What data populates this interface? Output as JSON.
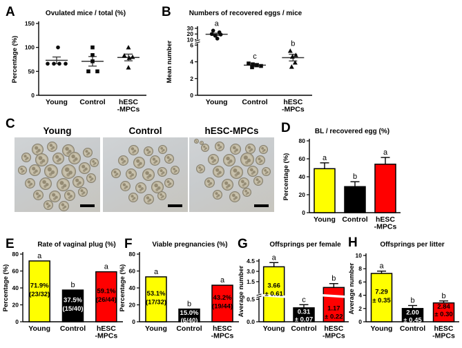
{
  "panel_c": {
    "letter": "C",
    "images": [
      {
        "label": "Young",
        "cells": [
          [
            20,
            8,
            15
          ],
          [
            38,
            6,
            13
          ],
          [
            56,
            9,
            16
          ],
          [
            8,
            20,
            12
          ],
          [
            24,
            21,
            17
          ],
          [
            44,
            20,
            15
          ],
          [
            63,
            19,
            16
          ],
          [
            80,
            14,
            12
          ],
          [
            4,
            38,
            11
          ],
          [
            17,
            36,
            15
          ],
          [
            35,
            36,
            18
          ],
          [
            55,
            36,
            19
          ],
          [
            75,
            33,
            15
          ],
          [
            88,
            28,
            11
          ],
          [
            12,
            55,
            13
          ],
          [
            29,
            54,
            16
          ],
          [
            49,
            55,
            17
          ],
          [
            68,
            52,
            15
          ],
          [
            84,
            48,
            12
          ],
          [
            22,
            70,
            13
          ],
          [
            40,
            71,
            15
          ],
          [
            58,
            70,
            14
          ],
          [
            74,
            67,
            12
          ],
          [
            34,
            84,
            12
          ],
          [
            52,
            85,
            13
          ]
        ]
      },
      {
        "label": "Control",
        "cells": [
          [
            30,
            10,
            13
          ],
          [
            48,
            12,
            12
          ],
          [
            65,
            10,
            11
          ],
          [
            18,
            24,
            13
          ],
          [
            36,
            26,
            15
          ],
          [
            55,
            24,
            13
          ],
          [
            72,
            22,
            12
          ],
          [
            10,
            42,
            12
          ],
          [
            27,
            42,
            14
          ],
          [
            46,
            42,
            16
          ],
          [
            64,
            40,
            12
          ],
          [
            80,
            38,
            11
          ],
          [
            20,
            58,
            13
          ],
          [
            38,
            60,
            14
          ],
          [
            57,
            58,
            16
          ],
          [
            72,
            55,
            12
          ],
          [
            30,
            74,
            12
          ],
          [
            48,
            76,
            13
          ],
          [
            64,
            72,
            11
          ]
        ]
      },
      {
        "label": "hESC-MPCs",
        "cells": [
          [
            6,
            2,
            5
          ],
          [
            12,
            5,
            4
          ],
          [
            14,
            8,
            10
          ],
          [
            30,
            6,
            12
          ],
          [
            48,
            8,
            14
          ],
          [
            66,
            8,
            13
          ],
          [
            82,
            10,
            11
          ],
          [
            22,
            22,
            14
          ],
          [
            40,
            22,
            16
          ],
          [
            60,
            20,
            18
          ],
          [
            78,
            24,
            12
          ],
          [
            8,
            36,
            11
          ],
          [
            28,
            38,
            15
          ],
          [
            48,
            38,
            17
          ],
          [
            68,
            38,
            14
          ],
          [
            85,
            40,
            11
          ],
          [
            18,
            54,
            13
          ],
          [
            38,
            56,
            15
          ],
          [
            58,
            54,
            14
          ],
          [
            76,
            52,
            12
          ],
          [
            28,
            70,
            12
          ],
          [
            47,
            72,
            14
          ],
          [
            63,
            68,
            11
          ]
        ]
      }
    ]
  },
  "chart_data": [
    {
      "panel": "A",
      "type": "scatter",
      "title": "Ovulated mice / total (%)",
      "ylabel": "Percentage (%)",
      "yticks": [
        0,
        50,
        100,
        150
      ],
      "ylim": [
        0,
        150
      ],
      "categories": [
        "Young",
        "Control",
        "hESC\n-MPCs"
      ],
      "groups": [
        {
          "name": "Young",
          "marker": "circle",
          "values": [
            100,
            66,
            66,
            66,
            66
          ],
          "dx": [
            2,
            -13,
            -4,
            4,
            13
          ],
          "mean": 73,
          "sem_low": 66,
          "sem_high": 80
        },
        {
          "name": "Control",
          "marker": "square",
          "values": [
            100,
            84,
            71,
            50,
            50
          ],
          "dx": [
            0,
            0,
            0,
            -6,
            7
          ],
          "mean": 71,
          "sem_low": 61,
          "sem_high": 81
        },
        {
          "name": "hESC-MPCs",
          "marker": "triangle",
          "values": [
            100,
            83,
            80,
            78,
            58
          ],
          "dx": [
            0,
            -6,
            6,
            1,
            0
          ],
          "mean": 79,
          "sem_low": 72,
          "sem_high": 86
        }
      ]
    },
    {
      "panel": "B",
      "type": "scatter",
      "title": "Numbers of recovered eggs / mice",
      "ylabel": "Mean number",
      "yticks": [
        0,
        2,
        4,
        6,
        10,
        20,
        30
      ],
      "ytick_labels": [
        "0",
        "2",
        "4",
        "6",
        "10",
        "20",
        "30"
      ],
      "scale": {
        "segments": [
          {
            "v0": 0,
            "v1": 6,
            "frac": 0.75
          },
          {
            "v0": 6,
            "v1": 10,
            "frac": 0.08
          },
          {
            "v0": 10,
            "v1": 30,
            "frac": 0.17
          }
        ]
      },
      "breaks": [
        6
      ],
      "categories": [
        "Young",
        "Control",
        "hESC\n-MPCs"
      ],
      "groups": [
        {
          "name": "Young",
          "marker": "circle",
          "letter": "a",
          "values": [
            26,
            23,
            20,
            19,
            17,
            12
          ],
          "dx": [
            -5,
            4,
            -7,
            6,
            -2,
            1
          ],
          "mean": 19.5,
          "sem_low": 17.5,
          "sem_high": 21.5
        },
        {
          "name": "Control",
          "marker": "square",
          "letter": "c",
          "values": [
            3.8,
            3.7,
            3.6,
            3.5,
            3.35
          ],
          "dx": [
            -9,
            -3,
            3,
            9,
            -4
          ],
          "mean": 3.6,
          "sem_low": 3.4,
          "sem_high": 3.8
        },
        {
          "name": "hESC-MPCs",
          "marker": "triangle",
          "letter": "b",
          "values": [
            5.3,
            4.8,
            4.6,
            3.9,
            3.4
          ],
          "dx": [
            -4,
            4,
            -1,
            3,
            -2
          ],
          "mean": 4.5,
          "sem_low": 4.1,
          "sem_high": 4.9
        }
      ]
    },
    {
      "panel": "D",
      "type": "bar",
      "title": "BL / recovered egg (%)",
      "ylabel": "Percentage (%)",
      "yticks": [
        0,
        20,
        40,
        60,
        80
      ],
      "ylim": [
        0,
        80
      ],
      "categories": [
        "Young",
        "Control",
        "hESC\n-MPCs"
      ],
      "bars": [
        {
          "category": "Young",
          "value": 49,
          "err": 6.5,
          "color": "#ffff00",
          "letter": "a"
        },
        {
          "category": "Control",
          "value": 29,
          "err": 5.5,
          "color": "#000000",
          "letter": "b"
        },
        {
          "category": "hESC-MPCs",
          "value": 54,
          "err": 7.5,
          "color": "#ff0000",
          "letter": "a"
        }
      ]
    },
    {
      "panel": "E",
      "type": "bar",
      "title": "Rate of vaginal plug (%)",
      "ylabel": "Percentage (%)",
      "yticks": [
        0,
        20,
        40,
        60,
        80
      ],
      "ylim": [
        0,
        80
      ],
      "categories": [
        "Young",
        "Control",
        "hESC\n-MPCs"
      ],
      "bars": [
        {
          "category": "Young",
          "value": 71.9,
          "color": "#ffff00",
          "letter": "a",
          "label": [
            "71.9%",
            "(23/32)"
          ],
          "label_color": "#000000"
        },
        {
          "category": "Control",
          "value": 37.5,
          "color": "#000000",
          "letter": "b",
          "label": [
            "37.5%",
            "(15/40)"
          ],
          "label_color": "#ffffff"
        },
        {
          "category": "hESC-MPCs",
          "value": 59.1,
          "color": "#ff0000",
          "letter": "a",
          "label": [
            "59.1%",
            "(26/44)"
          ],
          "label_color": "#000000"
        }
      ]
    },
    {
      "panel": "F",
      "type": "bar",
      "title": "Viable pregnancies (%)",
      "ylabel": "Percentage (%)",
      "yticks": [
        0,
        20,
        40,
        60,
        80
      ],
      "ylim": [
        0,
        80
      ],
      "categories": [
        "Young",
        "Control",
        "hESC\n-MPCs"
      ],
      "bars": [
        {
          "category": "Young",
          "value": 53.1,
          "color": "#ffff00",
          "letter": "a",
          "label": [
            "53.1%",
            "(17/32)"
          ],
          "label_color": "#000000"
        },
        {
          "category": "Control",
          "value": 15.0,
          "color": "#000000",
          "letter": "b",
          "label": [
            "15.0%",
            "(6/40)"
          ],
          "label_color": "#ffffff"
        },
        {
          "category": "hESC-MPCs",
          "value": 43.2,
          "color": "#ff0000",
          "letter": "a",
          "label": [
            "43.2%",
            "(19/44)"
          ],
          "label_color": "#000000"
        }
      ]
    },
    {
      "panel": "G",
      "type": "bar",
      "title": "Offsprings per female",
      "ylabel": "Average number",
      "yticks": [
        0,
        0.5,
        1.5,
        3,
        4.5
      ],
      "ytick_labels": [
        "0.0",
        "0.5",
        "1.5",
        "3.0",
        "4.5"
      ],
      "scale": {
        "segments": [
          {
            "v0": 0,
            "v1": 0.5,
            "frac": 0.37
          },
          {
            "v0": 0.5,
            "v1": 1.5,
            "frac": 0.29
          },
          {
            "v0": 1.5,
            "v1": 4.5,
            "frac": 0.34
          }
        ]
      },
      "breaks": [
        0.5
      ],
      "categories": [
        "Young",
        "Control",
        "hESC\n-MPCs"
      ],
      "bars": [
        {
          "category": "Young",
          "value": 3.66,
          "err": 0.61,
          "color": "#ffff00",
          "letter": "a",
          "label": [
            "3.66",
            "± 0.61"
          ],
          "label_color": "#000000"
        },
        {
          "category": "Control",
          "value": 0.31,
          "err": 0.07,
          "color": "#000000",
          "letter": "c",
          "label": [
            "0.31",
            "± 0.07"
          ],
          "label_color": "#ffffff"
        },
        {
          "category": "hESC-MPCs",
          "value": 1.17,
          "err": 0.22,
          "color": "#ff0000",
          "letter": "b",
          "label": [
            "1.17",
            "± 0.22"
          ],
          "label_color": "#000000"
        }
      ]
    },
    {
      "panel": "H",
      "type": "bar",
      "title": "Offsprings per litter",
      "ylabel": "Average number",
      "yticks": [
        0,
        2,
        4,
        6,
        8,
        10
      ],
      "ylim": [
        0,
        10
      ],
      "categories": [
        "Young",
        "Control",
        "hESC\n-MPCs"
      ],
      "bars": [
        {
          "category": "Young",
          "value": 7.29,
          "err": 0.35,
          "color": "#ffff00",
          "letter": "a",
          "label": [
            "7.29",
            "± 0.35"
          ],
          "label_color": "#000000"
        },
        {
          "category": "Control",
          "value": 2.0,
          "err": 0.45,
          "color": "#000000",
          "letter": "b",
          "label": [
            "2.00",
            "± 0.45"
          ],
          "label_color": "#ffffff"
        },
        {
          "category": "hESC-MPCs",
          "value": 2.84,
          "err": 0.3,
          "color": "#ff0000",
          "letter": "b",
          "label": [
            "2.84",
            "± 0.30"
          ],
          "label_color": "#000000"
        }
      ]
    }
  ]
}
